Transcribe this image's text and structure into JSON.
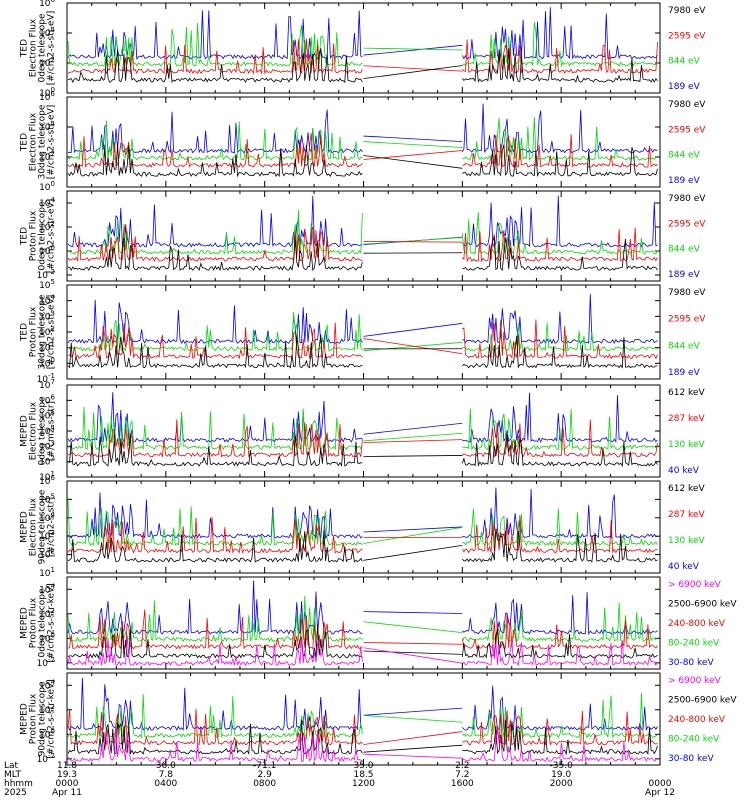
{
  "colors": {
    "black": "#000000",
    "red": "#ff0000",
    "green": "#00dd00",
    "blue": "#0000ff",
    "magenta": "#ff00ff"
  },
  "panels": [
    {
      "ylabel": [
        "TED",
        "Electron Flux",
        "0deg telescope",
        "[#/cm2-s-str-eV]"
      ],
      "ticks": [
        {
          "exp": 0
        },
        {
          "exp": 2
        },
        {
          "exp": 4
        },
        {
          "exp": 6
        }
      ],
      "ylim": [
        0,
        6
      ],
      "log_scale": true,
      "legend": [
        {
          "label": "7980 eV",
          "color": "black"
        },
        {
          "label": "2595 eV",
          "color": "red"
        },
        {
          "label": "844 eV",
          "color": "green"
        },
        {
          "label": "189 eV",
          "color": "blue"
        }
      ]
    },
    {
      "ylabel": [
        "TED",
        "Electron Flux",
        "30deg telescope",
        "[#/cm2-s-str-eV]"
      ],
      "ticks": [
        {
          "exp": 0
        },
        {
          "exp": 2
        },
        {
          "exp": 4
        },
        {
          "exp": 6
        }
      ],
      "ylim": [
        0,
        6
      ],
      "log_scale": true,
      "legend": [
        {
          "label": "7980 eV",
          "color": "black"
        },
        {
          "label": "2595 eV",
          "color": "red"
        },
        {
          "label": "844 eV",
          "color": "green"
        },
        {
          "label": "189 eV",
          "color": "blue"
        }
      ]
    },
    {
      "ylabel": [
        "TED",
        "Proton Flux",
        "0deg telescope",
        "[#/cm2-s-str-eV]"
      ],
      "ticks": [
        {
          "exp": -2
        },
        {
          "exp": 0
        },
        {
          "exp": 2
        },
        {
          "exp": 4
        }
      ],
      "ylim": [
        -2.5,
        5
      ],
      "log_scale": true,
      "legend": [
        {
          "label": "7980 eV",
          "color": "black"
        },
        {
          "label": "2595 eV",
          "color": "red"
        },
        {
          "label": "844 eV",
          "color": "green"
        },
        {
          "label": "189 eV",
          "color": "blue"
        }
      ]
    },
    {
      "ylabel": [
        "TED",
        "Proton Flux",
        "30deg telescope",
        "[#/cm2-s-str-eV]"
      ],
      "ticks": [
        {
          "exp": -1
        },
        {
          "exp": 0
        },
        {
          "exp": 1
        },
        {
          "exp": 2
        },
        {
          "exp": 3
        },
        {
          "exp": 4
        },
        {
          "exp": 5
        }
      ],
      "ylim": [
        -1,
        5
      ],
      "log_scale": true,
      "legend": [
        {
          "label": "7980 eV",
          "color": "black"
        },
        {
          "label": "2595 eV",
          "color": "red"
        },
        {
          "label": "844 eV",
          "color": "green"
        },
        {
          "label": "189 eV",
          "color": "blue"
        }
      ]
    },
    {
      "ylabel": [
        "MEPED",
        "Electron Flux",
        "0deg telescope",
        "[#/cm2-s-str]"
      ],
      "ticks": [
        {
          "exp": 1
        },
        {
          "exp": 2
        },
        {
          "exp": 3
        },
        {
          "exp": 4
        },
        {
          "exp": 5
        },
        {
          "exp": 6
        },
        {
          "exp": 7
        }
      ],
      "ylim": [
        1,
        7
      ],
      "log_scale": true,
      "legend": [
        {
          "label": "612 keV",
          "color": "black"
        },
        {
          "label": "287 keV",
          "color": "red"
        },
        {
          "label": "130 keV",
          "color": "green"
        },
        {
          "label": "40 keV",
          "color": "blue"
        }
      ]
    },
    {
      "ylabel": [
        "MEPED",
        "Electron Flux",
        "90deg telescope",
        "[#/cm2-s-str]"
      ],
      "ticks": [
        {
          "exp": 1
        },
        {
          "exp": 2
        },
        {
          "exp": 3
        },
        {
          "exp": 4
        },
        {
          "exp": 5
        },
        {
          "exp": 6
        }
      ],
      "ylim": [
        1,
        6
      ],
      "log_scale": true,
      "legend": [
        {
          "label": "612 keV",
          "color": "black"
        },
        {
          "label": "287 keV",
          "color": "red"
        },
        {
          "label": "130 keV",
          "color": "green"
        },
        {
          "label": "40 keV",
          "color": "blue"
        }
      ]
    },
    {
      "ylabel": [
        "MEPED",
        "Proton Flux",
        "0deg telescope",
        "[#/cm2-s-str-keV]"
      ],
      "ticks": [
        {
          "exp": -2
        },
        {
          "exp": 0
        },
        {
          "exp": 2
        },
        {
          "exp": 4
        }
      ],
      "ylim": [
        -2.5,
        5
      ],
      "log_scale": true,
      "legend": [
        {
          "label": "> 6900 keV",
          "color": "magenta"
        },
        {
          "label": "2500-6900 keV",
          "color": "black"
        },
        {
          "label": "240-800 keV",
          "color": "red"
        },
        {
          "label": "80-240 keV",
          "color": "green"
        },
        {
          "label": "30-80 keV",
          "color": "blue"
        }
      ]
    },
    {
      "ylabel": [
        "MEPED",
        "Proton Flux",
        "90deg telescope",
        "[#/cm2-s-str-keV]"
      ],
      "ticks": [
        {
          "exp": -2
        },
        {
          "exp": 0
        },
        {
          "exp": 2
        },
        {
          "exp": 4
        }
      ],
      "ylim": [
        -2.5,
        5
      ],
      "log_scale": true,
      "legend": [
        {
          "label": "> 6900 keV",
          "color": "magenta"
        },
        {
          "label": "2500-6900 keV",
          "color": "black"
        },
        {
          "label": "240-800 keV",
          "color": "red"
        },
        {
          "label": "80-240 keV",
          "color": "green"
        },
        {
          "label": "30-80 keV",
          "color": "blue"
        }
      ]
    }
  ],
  "xaxis": {
    "row_labels": [
      "Lat",
      "MLT",
      "hhmm",
      "2025"
    ],
    "columns": [
      {
        "lat": "11.8",
        "mlt": "19.3",
        "hhmm": "0000",
        "date": "Apr 11"
      },
      {
        "lat": "36.0",
        "mlt": "7.8",
        "hhmm": "0400",
        "date": ""
      },
      {
        "lat": "-71.1",
        "mlt": "2.9",
        "hhmm": "0800",
        "date": ""
      },
      {
        "lat": "35.0",
        "mlt": "18.5",
        "hhmm": "1200",
        "date": ""
      },
      {
        "lat": "2.2",
        "mlt": "7.2",
        "hhmm": "1600",
        "date": ""
      },
      {
        "lat": "-35.0",
        "mlt": "19.0",
        "hhmm": "2000",
        "date": ""
      },
      {
        "lat": "",
        "mlt": "",
        "hhmm": "0000",
        "date": "Apr 12"
      }
    ],
    "range_hours": [
      0,
      24
    ],
    "data_gap_hours": [
      12.0,
      16.0
    ]
  }
}
